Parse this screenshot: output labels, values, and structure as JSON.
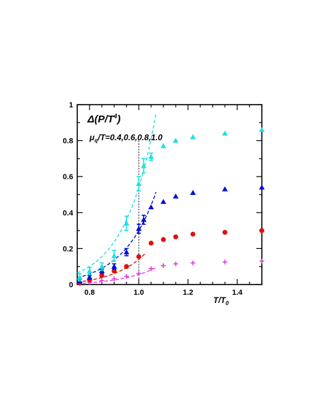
{
  "chart_data": {
    "type": "scatter",
    "title": "",
    "xlabel": "T/T",
    "xlabel_sub": "0",
    "ylabel": "",
    "xlim": [
      0.75,
      1.5
    ],
    "ylim": [
      0,
      1
    ],
    "grid": false,
    "legend": "none",
    "x_ticks": [
      "0.8",
      "1.0",
      "1.2",
      "1.4"
    ],
    "y_ticks": [
      "0",
      "0.2",
      "0.4",
      "0.6",
      "0.8",
      "1"
    ],
    "annotation_main": "Δ(P/T",
    "annotation_main_sup": "4",
    "annotation_main_tail": ")",
    "annotation_mu": "μ",
    "annotation_mu_sub": "q",
    "annotation_mu_tail": "/T=0.4,0.6,0.8,1.0",
    "vline_x": 1.0,
    "series": [
      {
        "marker": "plus",
        "color": "#e040e0",
        "x": [
          0.76,
          0.8,
          0.85,
          0.9,
          0.95,
          1.0,
          1.05,
          1.1,
          1.15,
          1.22,
          1.35,
          1.5
        ],
        "y": [
          0.005,
          0.012,
          0.022,
          0.032,
          0.045,
          0.062,
          0.088,
          0.105,
          0.115,
          0.12,
          0.125,
          0.13
        ],
        "fit_x": [
          0.75,
          1.07
        ],
        "fit": {
          "a": 0.061,
          "b": 7.0,
          "c": -0.005
        }
      },
      {
        "marker": "circle",
        "color": "#e01010",
        "x": [
          0.76,
          0.8,
          0.85,
          0.9,
          0.95,
          1.0,
          1.05,
          1.1,
          1.15,
          1.22,
          1.35,
          1.5
        ],
        "y": [
          0.01,
          0.025,
          0.05,
          0.075,
          0.1,
          0.155,
          0.23,
          0.25,
          0.265,
          0.28,
          0.29,
          0.3
        ],
        "fit_x": [
          0.75,
          1.03
        ],
        "fit": {
          "a": 0.15,
          "b": 7.5,
          "c": -0.01
        }
      },
      {
        "marker": "triangle",
        "color": "#0010d0",
        "x": [
          0.76,
          0.8,
          0.85,
          0.9,
          0.95,
          1.0,
          1.02,
          1.05,
          1.1,
          1.15,
          1.22,
          1.35,
          1.5
        ],
        "y": [
          0.02,
          0.04,
          0.075,
          0.1,
          0.18,
          0.31,
          0.36,
          0.43,
          0.46,
          0.49,
          0.51,
          0.53,
          0.54
        ],
        "err": [
          0.01,
          0.01,
          0.012,
          0.015,
          0.02,
          0.025,
          0.025,
          0,
          0,
          0,
          0,
          0,
          0
        ],
        "fit_x": [
          0.75,
          1.07
        ],
        "fit": {
          "a": 0.31,
          "b": 7.5,
          "c": -0.01
        }
      },
      {
        "marker": "triangle",
        "color": "#20e0e0",
        "x": [
          0.76,
          0.8,
          0.85,
          0.9,
          0.95,
          1.0,
          1.02,
          1.05,
          1.1,
          1.15,
          1.22,
          1.35,
          1.5
        ],
        "y": [
          0.04,
          0.075,
          0.1,
          0.16,
          0.34,
          0.56,
          0.66,
          0.71,
          0.77,
          0.8,
          0.82,
          0.84,
          0.86
        ],
        "err": [
          0.02,
          0.02,
          0.02,
          0.03,
          0.04,
          0.04,
          0.04,
          0.02,
          0,
          0,
          0,
          0,
          0
        ],
        "fit_x": [
          0.75,
          1.07
        ],
        "fit": {
          "a": 0.55,
          "b": 8.0,
          "c": -0.01
        }
      }
    ]
  }
}
